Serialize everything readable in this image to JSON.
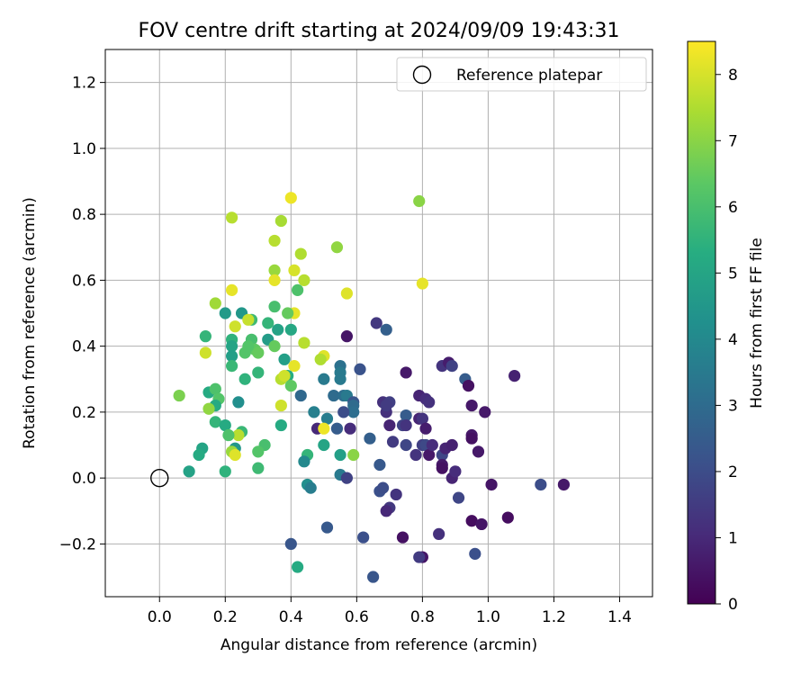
{
  "chart_data": {
    "type": "scatter",
    "title": "FOV centre drift starting at 2024/09/09 19:43:31",
    "xlabel": "Angular distance from reference (arcmin)",
    "ylabel": "Rotation from reference (arcmin)",
    "xlim": [
      -0.165,
      1.5
    ],
    "ylim": [
      -0.36,
      1.3
    ],
    "xticks": [
      "0.0",
      "0.2",
      "0.4",
      "0.6",
      "0.8",
      "1.0",
      "1.2",
      "1.4"
    ],
    "xtick_values": [
      0,
      0.2,
      0.4,
      0.6,
      0.8,
      1.0,
      1.2,
      1.4
    ],
    "yticks": [
      "−0.2",
      "0.0",
      "0.2",
      "0.4",
      "0.6",
      "0.8",
      "1.0",
      "1.2"
    ],
    "ytick_values": [
      -0.2,
      0,
      0.2,
      0.4,
      0.6,
      0.8,
      1.0,
      1.2
    ],
    "grid": true,
    "legend": {
      "position": "top-right",
      "label": "Reference platepar"
    },
    "reference_point": {
      "x": 0.0,
      "y": 0.0
    },
    "colorbar": {
      "label": "Hours from first FF file",
      "range": [
        0,
        8.5
      ],
      "ticks": [
        "0",
        "1",
        "2",
        "3",
        "4",
        "5",
        "6",
        "7",
        "8"
      ],
      "tick_values": [
        0,
        1,
        2,
        3,
        4,
        5,
        6,
        7,
        8
      ]
    },
    "points": [
      [
        0.4,
        0.85,
        8.3
      ],
      [
        0.79,
        0.84,
        7.0
      ],
      [
        0.22,
        0.79,
        7.6
      ],
      [
        0.37,
        0.78,
        7.4
      ],
      [
        0.35,
        0.72,
        7.6
      ],
      [
        0.43,
        0.68,
        7.5
      ],
      [
        0.54,
        0.7,
        7.1
      ],
      [
        0.35,
        0.63,
        7.2
      ],
      [
        0.41,
        0.63,
        8.0
      ],
      [
        0.35,
        0.6,
        8.2
      ],
      [
        0.44,
        0.6,
        7.6
      ],
      [
        0.57,
        0.56,
        8.1
      ],
      [
        0.8,
        0.59,
        8.2
      ],
      [
        0.22,
        0.57,
        8.2
      ],
      [
        0.42,
        0.57,
        6.1
      ],
      [
        0.17,
        0.53,
        7.3
      ],
      [
        0.35,
        0.52,
        6.0
      ],
      [
        0.41,
        0.5,
        8.2
      ],
      [
        0.39,
        0.5,
        6.5
      ],
      [
        0.2,
        0.5,
        4.6
      ],
      [
        0.25,
        0.5,
        4.5
      ],
      [
        0.28,
        0.48,
        5.8
      ],
      [
        0.27,
        0.48,
        7.8
      ],
      [
        0.23,
        0.46,
        7.9
      ],
      [
        0.33,
        0.47,
        5.6
      ],
      [
        0.36,
        0.45,
        4.9
      ],
      [
        0.4,
        0.45,
        5.1
      ],
      [
        0.14,
        0.43,
        5.6
      ],
      [
        0.22,
        0.42,
        5.5
      ],
      [
        0.28,
        0.42,
        6.0
      ],
      [
        0.33,
        0.42,
        4.7
      ],
      [
        0.35,
        0.4,
        6.5
      ],
      [
        0.44,
        0.41,
        7.6
      ],
      [
        0.29,
        0.39,
        6.4
      ],
      [
        0.26,
        0.38,
        6.2
      ],
      [
        0.3,
        0.38,
        6.5
      ],
      [
        0.14,
        0.38,
        7.9
      ],
      [
        0.22,
        0.4,
        5.0
      ],
      [
        0.27,
        0.4,
        6.2
      ],
      [
        0.22,
        0.37,
        4.8
      ],
      [
        0.38,
        0.36,
        4.8
      ],
      [
        0.41,
        0.34,
        8.2
      ],
      [
        0.5,
        0.37,
        8.1
      ],
      [
        0.49,
        0.36,
        7.5
      ],
      [
        0.22,
        0.34,
        5.7
      ],
      [
        0.3,
        0.32,
        5.6
      ],
      [
        0.39,
        0.31,
        5.3
      ],
      [
        0.37,
        0.3,
        7.6
      ],
      [
        0.38,
        0.31,
        7.9
      ],
      [
        0.26,
        0.3,
        5.5
      ],
      [
        0.4,
        0.28,
        6.4
      ],
      [
        0.15,
        0.26,
        5.2
      ],
      [
        0.17,
        0.27,
        6.1
      ],
      [
        0.06,
        0.25,
        6.8
      ],
      [
        0.18,
        0.24,
        6.2
      ],
      [
        0.17,
        0.22,
        5.2
      ],
      [
        0.15,
        0.21,
        7.1
      ],
      [
        0.24,
        0.23,
        4.2
      ],
      [
        0.43,
        0.25,
        2.9
      ],
      [
        0.37,
        0.22,
        7.9
      ],
      [
        0.17,
        0.17,
        5.6
      ],
      [
        0.2,
        0.16,
        5.2
      ],
      [
        0.47,
        0.2,
        3.7
      ],
      [
        0.51,
        0.18,
        3.6
      ],
      [
        0.37,
        0.16,
        5.2
      ],
      [
        0.48,
        0.15,
        1.0
      ],
      [
        0.5,
        0.15,
        8.3
      ],
      [
        0.25,
        0.14,
        5.7
      ],
      [
        0.24,
        0.13,
        7.6
      ],
      [
        0.21,
        0.13,
        6.1
      ],
      [
        0.5,
        0.1,
        5.0
      ],
      [
        0.23,
        0.09,
        4.5
      ],
      [
        0.13,
        0.09,
        5.0
      ],
      [
        0.32,
        0.1,
        6.0
      ],
      [
        0.3,
        0.08,
        6.2
      ],
      [
        0.22,
        0.08,
        7.2
      ],
      [
        0.23,
        0.07,
        8.1
      ],
      [
        0.12,
        0.07,
        5.2
      ],
      [
        0.45,
        0.07,
        5.6
      ],
      [
        0.44,
        0.05,
        4.0
      ],
      [
        0.55,
        0.07,
        4.8
      ],
      [
        0.59,
        0.07,
        7.0
      ],
      [
        0.3,
        0.03,
        5.8
      ],
      [
        0.2,
        0.02,
        5.5
      ],
      [
        0.09,
        0.02,
        4.9
      ],
      [
        0.55,
        0.01,
        3.5
      ],
      [
        0.57,
        0.0,
        1.7
      ],
      [
        0.45,
        -0.02,
        4.2
      ],
      [
        0.46,
        -0.03,
        3.6
      ],
      [
        0.51,
        -0.15,
        2.4
      ],
      [
        0.4,
        -0.2,
        2.3
      ],
      [
        0.42,
        -0.27,
        5.2
      ],
      [
        0.57,
        0.43,
        0.5
      ],
      [
        0.66,
        0.47,
        1.4
      ],
      [
        0.69,
        0.45,
        2.6
      ],
      [
        0.75,
        0.32,
        0.6
      ],
      [
        0.55,
        0.34,
        3.2
      ],
      [
        0.55,
        0.32,
        3.5
      ],
      [
        0.61,
        0.33,
        2.2
      ],
      [
        0.5,
        0.3,
        3.5
      ],
      [
        0.55,
        0.3,
        3.5
      ],
      [
        0.53,
        0.25,
        3.0
      ],
      [
        0.56,
        0.25,
        3.1
      ],
      [
        0.57,
        0.25,
        3.5
      ],
      [
        0.59,
        0.23,
        2.3
      ],
      [
        0.59,
        0.22,
        3.0
      ],
      [
        0.59,
        0.2,
        3.1
      ],
      [
        0.56,
        0.2,
        2.0
      ],
      [
        0.54,
        0.15,
        2.5
      ],
      [
        0.58,
        0.15,
        1.1
      ],
      [
        0.64,
        0.12,
        2.6
      ],
      [
        0.68,
        0.23,
        1.2
      ],
      [
        0.7,
        0.23,
        1.6
      ],
      [
        0.69,
        0.2,
        1.2
      ],
      [
        0.69,
        0.22,
        1.5
      ],
      [
        0.7,
        0.16,
        0.9
      ],
      [
        0.74,
        0.16,
        1.7
      ],
      [
        0.75,
        0.19,
        2.5
      ],
      [
        0.75,
        0.16,
        1.3
      ],
      [
        0.71,
        0.11,
        1.5
      ],
      [
        0.75,
        0.1,
        1.8
      ],
      [
        0.78,
        0.07,
        1.3
      ],
      [
        0.79,
        0.18,
        0.9
      ],
      [
        0.79,
        0.25,
        0.9
      ],
      [
        0.81,
        0.24,
        1.1
      ],
      [
        0.82,
        0.23,
        1.2
      ],
      [
        0.8,
        0.18,
        1.3
      ],
      [
        0.81,
        0.15,
        0.7
      ],
      [
        0.8,
        0.1,
        1.6
      ],
      [
        0.81,
        0.1,
        1.9
      ],
      [
        0.82,
        0.07,
        0.6
      ],
      [
        0.83,
        0.1,
        1.1
      ],
      [
        0.86,
        0.34,
        1.3
      ],
      [
        0.88,
        0.35,
        0.7
      ],
      [
        0.89,
        0.34,
        1.7
      ],
      [
        0.93,
        0.3,
        2.5
      ],
      [
        0.94,
        0.28,
        0.4
      ],
      [
        0.95,
        0.22,
        0.6
      ],
      [
        0.99,
        0.2,
        0.6
      ],
      [
        1.08,
        0.31,
        0.8
      ],
      [
        0.86,
        0.07,
        1.8
      ],
      [
        0.87,
        0.09,
        0.9
      ],
      [
        0.89,
        0.1,
        0.8
      ],
      [
        0.86,
        0.04,
        0.6
      ],
      [
        0.86,
        0.03,
        0.4
      ],
      [
        0.89,
        0.0,
        0.9
      ],
      [
        0.9,
        0.02,
        1.1
      ],
      [
        0.91,
        -0.06,
        1.8
      ],
      [
        0.95,
        0.13,
        0.6
      ],
      [
        0.95,
        0.12,
        0.4
      ],
      [
        0.97,
        0.08,
        0.6
      ],
      [
        1.01,
        -0.02,
        0.5
      ],
      [
        0.95,
        -0.13,
        0.3
      ],
      [
        0.98,
        -0.14,
        0.5
      ],
      [
        1.06,
        -0.12,
        0.3
      ],
      [
        1.16,
        -0.02,
        2.0
      ],
      [
        1.23,
        -0.02,
        0.6
      ],
      [
        0.96,
        -0.23,
        2.1
      ],
      [
        0.85,
        -0.17,
        1.2
      ],
      [
        0.8,
        -0.24,
        0.5
      ],
      [
        0.79,
        -0.24,
        1.5
      ],
      [
        0.74,
        -0.18,
        0.4
      ],
      [
        0.67,
        -0.04,
        2.1
      ],
      [
        0.68,
        -0.03,
        2.0
      ],
      [
        0.67,
        0.04,
        2.4
      ],
      [
        0.7,
        -0.09,
        1.4
      ],
      [
        0.69,
        -0.1,
        1.0
      ],
      [
        0.72,
        -0.05,
        1.3
      ],
      [
        0.62,
        -0.18,
        2.1
      ],
      [
        0.65,
        -0.3,
        2.3
      ]
    ]
  }
}
